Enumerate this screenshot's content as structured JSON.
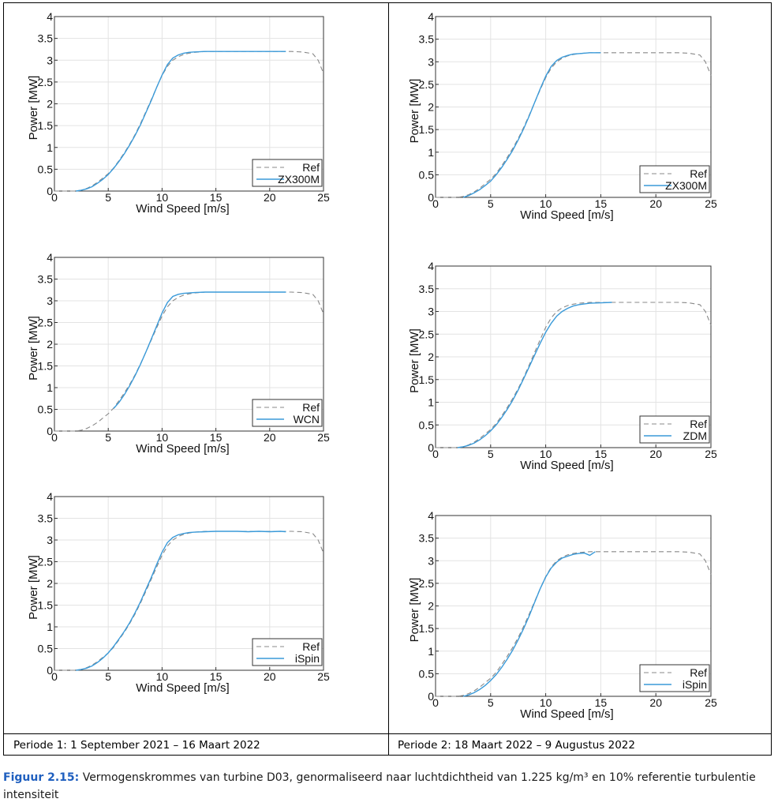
{
  "periods": {
    "left": "Periode 1: 1 September 2021 – 16 Maart 2022",
    "right": "Periode 2: 18 Maart 2022 – 9 Augustus 2022"
  },
  "caption": {
    "label": "Figuur 2.15:",
    "text": " Vermogenskrommes van turbine D03, genormaliseerd naar luchtdichtheid van 1.225 kg/m³ en 10% referentie turbulentie intensiteit"
  },
  "colors": {
    "ref": "#888888",
    "measured": "#3a9ad9"
  },
  "chart_data": [
    {
      "type": "line",
      "panel": "left-top",
      "xlabel": "Wind Speed [m/s]",
      "ylabel": "Power [MW]",
      "xlim": [
        0,
        25
      ],
      "ylim": [
        0,
        4
      ],
      "xticks": [
        0,
        5,
        10,
        15,
        20,
        25
      ],
      "yticks": [
        0,
        0.5,
        1,
        1.5,
        2,
        2.5,
        3,
        3.5,
        4
      ],
      "grid": true,
      "legend_position": "bottom-right",
      "series": [
        {
          "name": "Ref",
          "style": "dashed",
          "x": [
            0,
            1,
            2,
            2.5,
            3,
            3.5,
            4,
            4.5,
            5,
            5.5,
            6,
            6.5,
            7,
            7.5,
            8,
            8.5,
            9,
            9.5,
            10,
            10.5,
            11,
            11.5,
            12,
            12.5,
            13,
            14,
            15,
            16,
            17,
            18,
            19,
            20,
            21,
            22,
            23,
            24,
            24.5,
            25
          ],
          "y": [
            0,
            0,
            0,
            0.02,
            0.06,
            0.12,
            0.2,
            0.3,
            0.4,
            0.53,
            0.7,
            0.88,
            1.08,
            1.3,
            1.55,
            1.82,
            2.1,
            2.38,
            2.65,
            2.86,
            3.0,
            3.08,
            3.13,
            3.16,
            3.18,
            3.2,
            3.2,
            3.2,
            3.2,
            3.2,
            3.2,
            3.2,
            3.2,
            3.2,
            3.19,
            3.15,
            3.0,
            2.7
          ]
        },
        {
          "name": "ZX300M",
          "style": "solid",
          "x": [
            2,
            2.5,
            3,
            3.5,
            4,
            4.5,
            5,
            5.5,
            6,
            6.5,
            7,
            7.5,
            8,
            8.5,
            9,
            9.5,
            10,
            10.5,
            11,
            11.5,
            12,
            12.5,
            13,
            14,
            15,
            16,
            17,
            18,
            19,
            20,
            21,
            21.5
          ],
          "y": [
            0,
            0.02,
            0.05,
            0.1,
            0.18,
            0.27,
            0.38,
            0.52,
            0.68,
            0.86,
            1.06,
            1.28,
            1.52,
            1.8,
            2.08,
            2.38,
            2.66,
            2.9,
            3.05,
            3.12,
            3.16,
            3.18,
            3.19,
            3.2,
            3.2,
            3.2,
            3.2,
            3.2,
            3.2,
            3.2,
            3.2,
            3.2
          ]
        }
      ]
    },
    {
      "type": "line",
      "panel": "left-middle",
      "xlabel": "Wind Speed [m/s]",
      "ylabel": "Power [MW]",
      "xlim": [
        0,
        25
      ],
      "ylim": [
        0,
        4
      ],
      "xticks": [
        0,
        5,
        10,
        15,
        20,
        25
      ],
      "yticks": [
        0,
        0.5,
        1,
        1.5,
        2,
        2.5,
        3,
        3.5,
        4
      ],
      "grid": true,
      "legend_position": "bottom-right",
      "series": [
        {
          "name": "Ref",
          "style": "dashed",
          "x": [
            0,
            1,
            2,
            2.5,
            3,
            3.5,
            4,
            4.5,
            5,
            5.5,
            6,
            6.5,
            7,
            7.5,
            8,
            8.5,
            9,
            9.5,
            10,
            10.5,
            11,
            11.5,
            12,
            12.5,
            13,
            14,
            15,
            16,
            17,
            18,
            19,
            20,
            21,
            22,
            23,
            24,
            24.5,
            25
          ],
          "y": [
            0,
            0,
            0,
            0.02,
            0.06,
            0.12,
            0.2,
            0.3,
            0.4,
            0.53,
            0.7,
            0.88,
            1.08,
            1.3,
            1.55,
            1.82,
            2.1,
            2.38,
            2.65,
            2.86,
            3.0,
            3.08,
            3.13,
            3.16,
            3.18,
            3.2,
            3.2,
            3.2,
            3.2,
            3.2,
            3.2,
            3.2,
            3.2,
            3.2,
            3.19,
            3.15,
            3.0,
            2.7
          ]
        },
        {
          "name": "WCN",
          "style": "solid",
          "x": [
            5.5,
            6,
            6.5,
            7,
            7.5,
            8,
            8.5,
            9,
            9.5,
            10,
            10.5,
            11,
            11.5,
            12,
            12.5,
            13,
            14,
            15,
            16,
            17,
            18,
            19,
            20,
            21,
            21.5
          ],
          "y": [
            0.52,
            0.66,
            0.84,
            1.05,
            1.28,
            1.54,
            1.82,
            2.12,
            2.42,
            2.72,
            2.96,
            3.1,
            3.15,
            3.17,
            3.18,
            3.19,
            3.2,
            3.2,
            3.2,
            3.2,
            3.2,
            3.2,
            3.2,
            3.2,
            3.2
          ]
        }
      ]
    },
    {
      "type": "line",
      "panel": "left-bottom",
      "xlabel": "Wind Speed [m/s]",
      "ylabel": "Power [MW]",
      "xlim": [
        0,
        25
      ],
      "ylim": [
        0,
        4
      ],
      "xticks": [
        0,
        5,
        10,
        15,
        20,
        25
      ],
      "yticks": [
        0,
        0.5,
        1,
        1.5,
        2,
        2.5,
        3,
        3.5,
        4
      ],
      "grid": true,
      "legend_position": "bottom-right",
      "series": [
        {
          "name": "Ref",
          "style": "dashed",
          "x": [
            0,
            1,
            2,
            2.5,
            3,
            3.5,
            4,
            4.5,
            5,
            5.5,
            6,
            6.5,
            7,
            7.5,
            8,
            8.5,
            9,
            9.5,
            10,
            10.5,
            11,
            11.5,
            12,
            12.5,
            13,
            14,
            15,
            16,
            17,
            18,
            19,
            20,
            21,
            22,
            23,
            24,
            24.5,
            25
          ],
          "y": [
            0,
            0,
            0,
            0.02,
            0.06,
            0.12,
            0.2,
            0.3,
            0.4,
            0.53,
            0.7,
            0.88,
            1.08,
            1.3,
            1.55,
            1.82,
            2.1,
            2.38,
            2.65,
            2.86,
            3.0,
            3.08,
            3.13,
            3.16,
            3.18,
            3.2,
            3.2,
            3.2,
            3.2,
            3.2,
            3.2,
            3.2,
            3.2,
            3.2,
            3.19,
            3.15,
            3.0,
            2.7
          ]
        },
        {
          "name": "iSpin",
          "style": "solid",
          "x": [
            2,
            2.5,
            3,
            3.5,
            4,
            4.5,
            5,
            5.5,
            6,
            6.5,
            7,
            7.5,
            8,
            8.5,
            9,
            9.5,
            10,
            10.5,
            11,
            11.5,
            12,
            12.5,
            13,
            14,
            15,
            16,
            17,
            18,
            19,
            20,
            21,
            21.5
          ],
          "y": [
            0,
            0.02,
            0.05,
            0.1,
            0.18,
            0.28,
            0.4,
            0.55,
            0.72,
            0.9,
            1.1,
            1.33,
            1.58,
            1.86,
            2.14,
            2.44,
            2.72,
            2.94,
            3.06,
            3.12,
            3.15,
            3.17,
            3.18,
            3.19,
            3.2,
            3.2,
            3.2,
            3.19,
            3.2,
            3.19,
            3.2,
            3.19
          ]
        }
      ]
    },
    {
      "type": "line",
      "panel": "right-top",
      "xlabel": "Wind Speed [m/s]",
      "ylabel": "Power [MW]",
      "xlim": [
        0,
        25
      ],
      "ylim": [
        0,
        4
      ],
      "xticks": [
        0,
        5,
        10,
        15,
        20,
        25
      ],
      "yticks": [
        0,
        0.5,
        1,
        1.5,
        2,
        2.5,
        3,
        3.5,
        4
      ],
      "grid": true,
      "legend_position": "bottom-right",
      "series": [
        {
          "name": "Ref",
          "style": "dashed",
          "x": [
            0,
            1,
            2,
            2.5,
            3,
            3.5,
            4,
            4.5,
            5,
            5.5,
            6,
            6.5,
            7,
            7.5,
            8,
            8.5,
            9,
            9.5,
            10,
            10.5,
            11,
            11.5,
            12,
            12.5,
            13,
            14,
            15,
            16,
            17,
            18,
            19,
            20,
            21,
            22,
            23,
            24,
            24.5,
            25
          ],
          "y": [
            0,
            0,
            0,
            0.02,
            0.06,
            0.12,
            0.2,
            0.3,
            0.4,
            0.53,
            0.7,
            0.88,
            1.08,
            1.3,
            1.55,
            1.82,
            2.1,
            2.38,
            2.65,
            2.86,
            3.0,
            3.08,
            3.13,
            3.16,
            3.18,
            3.2,
            3.2,
            3.2,
            3.2,
            3.2,
            3.2,
            3.2,
            3.2,
            3.2,
            3.19,
            3.15,
            3.0,
            2.7
          ]
        },
        {
          "name": "ZX300M",
          "style": "solid",
          "x": [
            2.5,
            3,
            3.5,
            4,
            4.5,
            5,
            5.5,
            6,
            6.5,
            7,
            7.5,
            8,
            8.5,
            9,
            9.5,
            10,
            10.5,
            11,
            11.5,
            12,
            12.5,
            13,
            14,
            15
          ],
          "y": [
            0,
            0.04,
            0.1,
            0.17,
            0.26,
            0.36,
            0.5,
            0.66,
            0.84,
            1.04,
            1.27,
            1.52,
            1.8,
            2.1,
            2.4,
            2.68,
            2.9,
            3.03,
            3.1,
            3.14,
            3.17,
            3.18,
            3.2,
            3.2
          ]
        }
      ]
    },
    {
      "type": "line",
      "panel": "right-middle",
      "xlabel": "Wind Speed [m/s]",
      "ylabel": "Power [MW]",
      "xlim": [
        0,
        25
      ],
      "ylim": [
        0,
        4
      ],
      "xticks": [
        0,
        5,
        10,
        15,
        20,
        25
      ],
      "yticks": [
        0,
        0.5,
        1,
        1.5,
        2,
        2.5,
        3,
        3.5,
        4
      ],
      "grid": true,
      "legend_position": "bottom-right",
      "series": [
        {
          "name": "Ref",
          "style": "dashed",
          "x": [
            0,
            1,
            2,
            2.5,
            3,
            3.5,
            4,
            4.5,
            5,
            5.5,
            6,
            6.5,
            7,
            7.5,
            8,
            8.5,
            9,
            9.5,
            10,
            10.5,
            11,
            11.5,
            12,
            12.5,
            13,
            14,
            15,
            16,
            17,
            18,
            19,
            20,
            21,
            22,
            23,
            24,
            24.5,
            25
          ],
          "y": [
            0,
            0,
            0,
            0.02,
            0.06,
            0.12,
            0.2,
            0.3,
            0.4,
            0.53,
            0.7,
            0.88,
            1.08,
            1.3,
            1.55,
            1.82,
            2.1,
            2.38,
            2.65,
            2.86,
            3.0,
            3.08,
            3.13,
            3.16,
            3.18,
            3.2,
            3.2,
            3.2,
            3.2,
            3.2,
            3.2,
            3.2,
            3.2,
            3.2,
            3.19,
            3.15,
            3.0,
            2.7
          ]
        },
        {
          "name": "ZDM",
          "style": "solid",
          "x": [
            2,
            2.5,
            3,
            3.5,
            4,
            4.5,
            5,
            5.5,
            6,
            6.5,
            7,
            7.5,
            8,
            8.5,
            9,
            9.5,
            10,
            10.5,
            11,
            11.5,
            12,
            12.5,
            13,
            14,
            15,
            16
          ],
          "y": [
            0,
            0.02,
            0.05,
            0.1,
            0.17,
            0.26,
            0.37,
            0.5,
            0.66,
            0.84,
            1.04,
            1.27,
            1.52,
            1.78,
            2.04,
            2.3,
            2.54,
            2.74,
            2.9,
            3.0,
            3.07,
            3.12,
            3.15,
            3.18,
            3.19,
            3.2
          ]
        }
      ]
    },
    {
      "type": "line",
      "panel": "right-bottom",
      "xlabel": "Wind Speed [m/s]",
      "ylabel": "Power [MW]",
      "xlim": [
        0,
        25
      ],
      "ylim": [
        0,
        4
      ],
      "xticks": [
        0,
        5,
        10,
        15,
        20,
        25
      ],
      "yticks": [
        0,
        0.5,
        1,
        1.5,
        2,
        2.5,
        3,
        3.5,
        4
      ],
      "grid": true,
      "legend_position": "bottom-right",
      "series": [
        {
          "name": "Ref",
          "style": "dashed",
          "x": [
            0,
            1,
            2,
            2.5,
            3,
            3.5,
            4,
            4.5,
            5,
            5.5,
            6,
            6.5,
            7,
            7.5,
            8,
            8.5,
            9,
            9.5,
            10,
            10.5,
            11,
            11.5,
            12,
            12.5,
            13,
            14,
            15,
            16,
            17,
            18,
            19,
            20,
            21,
            22,
            23,
            24,
            24.5,
            25
          ],
          "y": [
            0,
            0,
            0,
            0.02,
            0.06,
            0.12,
            0.2,
            0.3,
            0.4,
            0.53,
            0.7,
            0.88,
            1.08,
            1.3,
            1.55,
            1.82,
            2.1,
            2.38,
            2.65,
            2.86,
            3.0,
            3.08,
            3.13,
            3.16,
            3.18,
            3.2,
            3.2,
            3.2,
            3.2,
            3.2,
            3.2,
            3.2,
            3.2,
            3.2,
            3.19,
            3.15,
            3.0,
            2.7
          ]
        },
        {
          "name": "iSpin",
          "style": "solid",
          "x": [
            2.5,
            3,
            3.5,
            4,
            4.5,
            5,
            5.5,
            6,
            6.5,
            7,
            7.5,
            8,
            8.5,
            9,
            9.5,
            10,
            10.5,
            11,
            11.5,
            12,
            12.5,
            13,
            13.5,
            14,
            14.5
          ],
          "y": [
            0,
            0.03,
            0.08,
            0.15,
            0.24,
            0.35,
            0.48,
            0.64,
            0.82,
            1.02,
            1.25,
            1.5,
            1.78,
            2.08,
            2.38,
            2.64,
            2.84,
            2.97,
            3.06,
            3.1,
            3.14,
            3.16,
            3.17,
            3.12,
            3.2
          ]
        }
      ]
    }
  ]
}
